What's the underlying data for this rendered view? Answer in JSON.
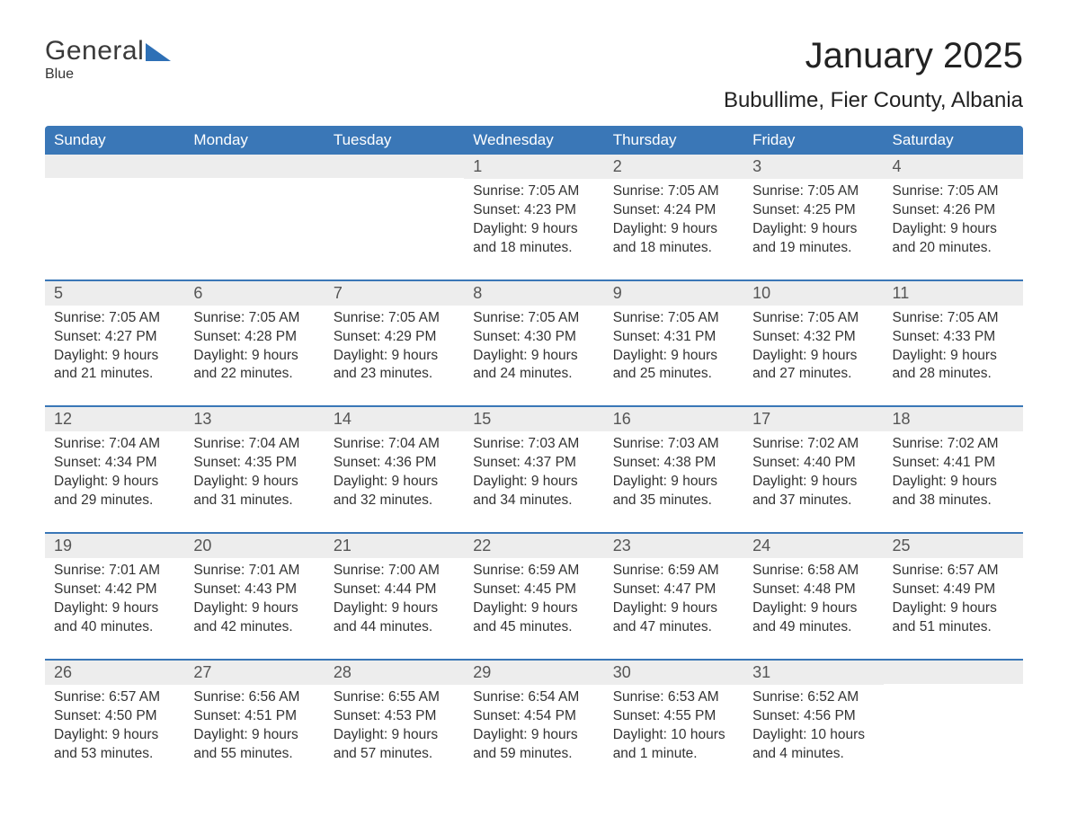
{
  "logo": {
    "word1": "General",
    "word2": "Blue"
  },
  "title": "January 2025",
  "subtitle": "Bubullime, Fier County, Albania",
  "colors": {
    "header_bg": "#3a77b7",
    "header_text": "#ffffff",
    "daynum_bg": "#ededed",
    "row_divider": "#3a77b7",
    "body_text": "#333333",
    "logo_blue": "#2e70b6"
  },
  "day_headers": [
    "Sunday",
    "Monday",
    "Tuesday",
    "Wednesday",
    "Thursday",
    "Friday",
    "Saturday"
  ],
  "weeks": [
    [
      {
        "day": "",
        "sunrise": "",
        "sunset": "",
        "daylight1": "",
        "daylight2": ""
      },
      {
        "day": "",
        "sunrise": "",
        "sunset": "",
        "daylight1": "",
        "daylight2": ""
      },
      {
        "day": "",
        "sunrise": "",
        "sunset": "",
        "daylight1": "",
        "daylight2": ""
      },
      {
        "day": "1",
        "sunrise": "Sunrise: 7:05 AM",
        "sunset": "Sunset: 4:23 PM",
        "daylight1": "Daylight: 9 hours",
        "daylight2": "and 18 minutes."
      },
      {
        "day": "2",
        "sunrise": "Sunrise: 7:05 AM",
        "sunset": "Sunset: 4:24 PM",
        "daylight1": "Daylight: 9 hours",
        "daylight2": "and 18 minutes."
      },
      {
        "day": "3",
        "sunrise": "Sunrise: 7:05 AM",
        "sunset": "Sunset: 4:25 PM",
        "daylight1": "Daylight: 9 hours",
        "daylight2": "and 19 minutes."
      },
      {
        "day": "4",
        "sunrise": "Sunrise: 7:05 AM",
        "sunset": "Sunset: 4:26 PM",
        "daylight1": "Daylight: 9 hours",
        "daylight2": "and 20 minutes."
      }
    ],
    [
      {
        "day": "5",
        "sunrise": "Sunrise: 7:05 AM",
        "sunset": "Sunset: 4:27 PM",
        "daylight1": "Daylight: 9 hours",
        "daylight2": "and 21 minutes."
      },
      {
        "day": "6",
        "sunrise": "Sunrise: 7:05 AM",
        "sunset": "Sunset: 4:28 PM",
        "daylight1": "Daylight: 9 hours",
        "daylight2": "and 22 minutes."
      },
      {
        "day": "7",
        "sunrise": "Sunrise: 7:05 AM",
        "sunset": "Sunset: 4:29 PM",
        "daylight1": "Daylight: 9 hours",
        "daylight2": "and 23 minutes."
      },
      {
        "day": "8",
        "sunrise": "Sunrise: 7:05 AM",
        "sunset": "Sunset: 4:30 PM",
        "daylight1": "Daylight: 9 hours",
        "daylight2": "and 24 minutes."
      },
      {
        "day": "9",
        "sunrise": "Sunrise: 7:05 AM",
        "sunset": "Sunset: 4:31 PM",
        "daylight1": "Daylight: 9 hours",
        "daylight2": "and 25 minutes."
      },
      {
        "day": "10",
        "sunrise": "Sunrise: 7:05 AM",
        "sunset": "Sunset: 4:32 PM",
        "daylight1": "Daylight: 9 hours",
        "daylight2": "and 27 minutes."
      },
      {
        "day": "11",
        "sunrise": "Sunrise: 7:05 AM",
        "sunset": "Sunset: 4:33 PM",
        "daylight1": "Daylight: 9 hours",
        "daylight2": "and 28 minutes."
      }
    ],
    [
      {
        "day": "12",
        "sunrise": "Sunrise: 7:04 AM",
        "sunset": "Sunset: 4:34 PM",
        "daylight1": "Daylight: 9 hours",
        "daylight2": "and 29 minutes."
      },
      {
        "day": "13",
        "sunrise": "Sunrise: 7:04 AM",
        "sunset": "Sunset: 4:35 PM",
        "daylight1": "Daylight: 9 hours",
        "daylight2": "and 31 minutes."
      },
      {
        "day": "14",
        "sunrise": "Sunrise: 7:04 AM",
        "sunset": "Sunset: 4:36 PM",
        "daylight1": "Daylight: 9 hours",
        "daylight2": "and 32 minutes."
      },
      {
        "day": "15",
        "sunrise": "Sunrise: 7:03 AM",
        "sunset": "Sunset: 4:37 PM",
        "daylight1": "Daylight: 9 hours",
        "daylight2": "and 34 minutes."
      },
      {
        "day": "16",
        "sunrise": "Sunrise: 7:03 AM",
        "sunset": "Sunset: 4:38 PM",
        "daylight1": "Daylight: 9 hours",
        "daylight2": "and 35 minutes."
      },
      {
        "day": "17",
        "sunrise": "Sunrise: 7:02 AM",
        "sunset": "Sunset: 4:40 PM",
        "daylight1": "Daylight: 9 hours",
        "daylight2": "and 37 minutes."
      },
      {
        "day": "18",
        "sunrise": "Sunrise: 7:02 AM",
        "sunset": "Sunset: 4:41 PM",
        "daylight1": "Daylight: 9 hours",
        "daylight2": "and 38 minutes."
      }
    ],
    [
      {
        "day": "19",
        "sunrise": "Sunrise: 7:01 AM",
        "sunset": "Sunset: 4:42 PM",
        "daylight1": "Daylight: 9 hours",
        "daylight2": "and 40 minutes."
      },
      {
        "day": "20",
        "sunrise": "Sunrise: 7:01 AM",
        "sunset": "Sunset: 4:43 PM",
        "daylight1": "Daylight: 9 hours",
        "daylight2": "and 42 minutes."
      },
      {
        "day": "21",
        "sunrise": "Sunrise: 7:00 AM",
        "sunset": "Sunset: 4:44 PM",
        "daylight1": "Daylight: 9 hours",
        "daylight2": "and 44 minutes."
      },
      {
        "day": "22",
        "sunrise": "Sunrise: 6:59 AM",
        "sunset": "Sunset: 4:45 PM",
        "daylight1": "Daylight: 9 hours",
        "daylight2": "and 45 minutes."
      },
      {
        "day": "23",
        "sunrise": "Sunrise: 6:59 AM",
        "sunset": "Sunset: 4:47 PM",
        "daylight1": "Daylight: 9 hours",
        "daylight2": "and 47 minutes."
      },
      {
        "day": "24",
        "sunrise": "Sunrise: 6:58 AM",
        "sunset": "Sunset: 4:48 PM",
        "daylight1": "Daylight: 9 hours",
        "daylight2": "and 49 minutes."
      },
      {
        "day": "25",
        "sunrise": "Sunrise: 6:57 AM",
        "sunset": "Sunset: 4:49 PM",
        "daylight1": "Daylight: 9 hours",
        "daylight2": "and 51 minutes."
      }
    ],
    [
      {
        "day": "26",
        "sunrise": "Sunrise: 6:57 AM",
        "sunset": "Sunset: 4:50 PM",
        "daylight1": "Daylight: 9 hours",
        "daylight2": "and 53 minutes."
      },
      {
        "day": "27",
        "sunrise": "Sunrise: 6:56 AM",
        "sunset": "Sunset: 4:51 PM",
        "daylight1": "Daylight: 9 hours",
        "daylight2": "and 55 minutes."
      },
      {
        "day": "28",
        "sunrise": "Sunrise: 6:55 AM",
        "sunset": "Sunset: 4:53 PM",
        "daylight1": "Daylight: 9 hours",
        "daylight2": "and 57 minutes."
      },
      {
        "day": "29",
        "sunrise": "Sunrise: 6:54 AM",
        "sunset": "Sunset: 4:54 PM",
        "daylight1": "Daylight: 9 hours",
        "daylight2": "and 59 minutes."
      },
      {
        "day": "30",
        "sunrise": "Sunrise: 6:53 AM",
        "sunset": "Sunset: 4:55 PM",
        "daylight1": "Daylight: 10 hours",
        "daylight2": "and 1 minute."
      },
      {
        "day": "31",
        "sunrise": "Sunrise: 6:52 AM",
        "sunset": "Sunset: 4:56 PM",
        "daylight1": "Daylight: 10 hours",
        "daylight2": "and 4 minutes."
      },
      {
        "day": "",
        "sunrise": "",
        "sunset": "",
        "daylight1": "",
        "daylight2": ""
      }
    ]
  ]
}
